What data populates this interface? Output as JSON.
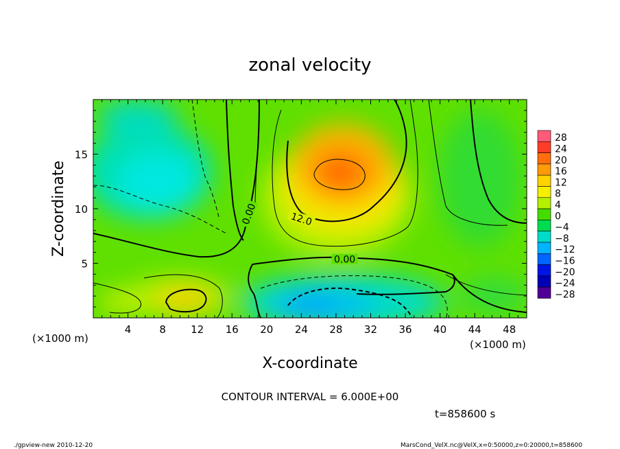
{
  "chart_data": {
    "type": "heatmap",
    "title": "zonal velocity",
    "xlabel": "X-coordinate",
    "ylabel": "Z-coordinate",
    "x_unit": "(×1000 m)",
    "y_unit": "(×1000 m)",
    "xlim": [
      0,
      50
    ],
    "ylim": [
      0,
      20
    ],
    "x_ticks": [
      4,
      8,
      12,
      16,
      20,
      24,
      28,
      32,
      36,
      40,
      44,
      48
    ],
    "y_ticks": [
      5,
      10,
      15
    ],
    "colorbar": {
      "levels": [
        28,
        24,
        20,
        16,
        12,
        8,
        4,
        0,
        -4,
        -8,
        -12,
        -16,
        -20,
        -24,
        -28
      ],
      "colors": [
        "#ff5a78",
        "#ff3c28",
        "#ff6e0a",
        "#ff9a0a",
        "#ffd200",
        "#f5f000",
        "#b4f000",
        "#46dc00",
        "#00dc50",
        "#00dcc8",
        "#00b4ff",
        "#0064ff",
        "#0014e6",
        "#0000b4",
        "#500096"
      ]
    },
    "contour_labels": [
      {
        "text": "0.00",
        "x": 29.0,
        "z": 5.3
      },
      {
        "text": "12.0",
        "x": 24.0,
        "z": 9.0
      },
      {
        "text": "0.00",
        "x": 18.0,
        "z": 9.5
      }
    ],
    "field_features": [
      {
        "kind": "max",
        "x": 28,
        "z": 13,
        "value": 22
      },
      {
        "kind": "min",
        "x": 26,
        "z": 1.5,
        "value": -14
      },
      {
        "kind": "min",
        "x": 7,
        "z": 15.5,
        "value": -9
      }
    ]
  },
  "annotations": {
    "contour_interval": "CONTOUR INTERVAL = 6.000E+00",
    "time": "t=858600 s",
    "footer_left": "./gpview-new  2010-12-20",
    "footer_right": "MarsCond_VelX.nc@VelX,x=0:50000,z=0:20000,t=858600"
  }
}
